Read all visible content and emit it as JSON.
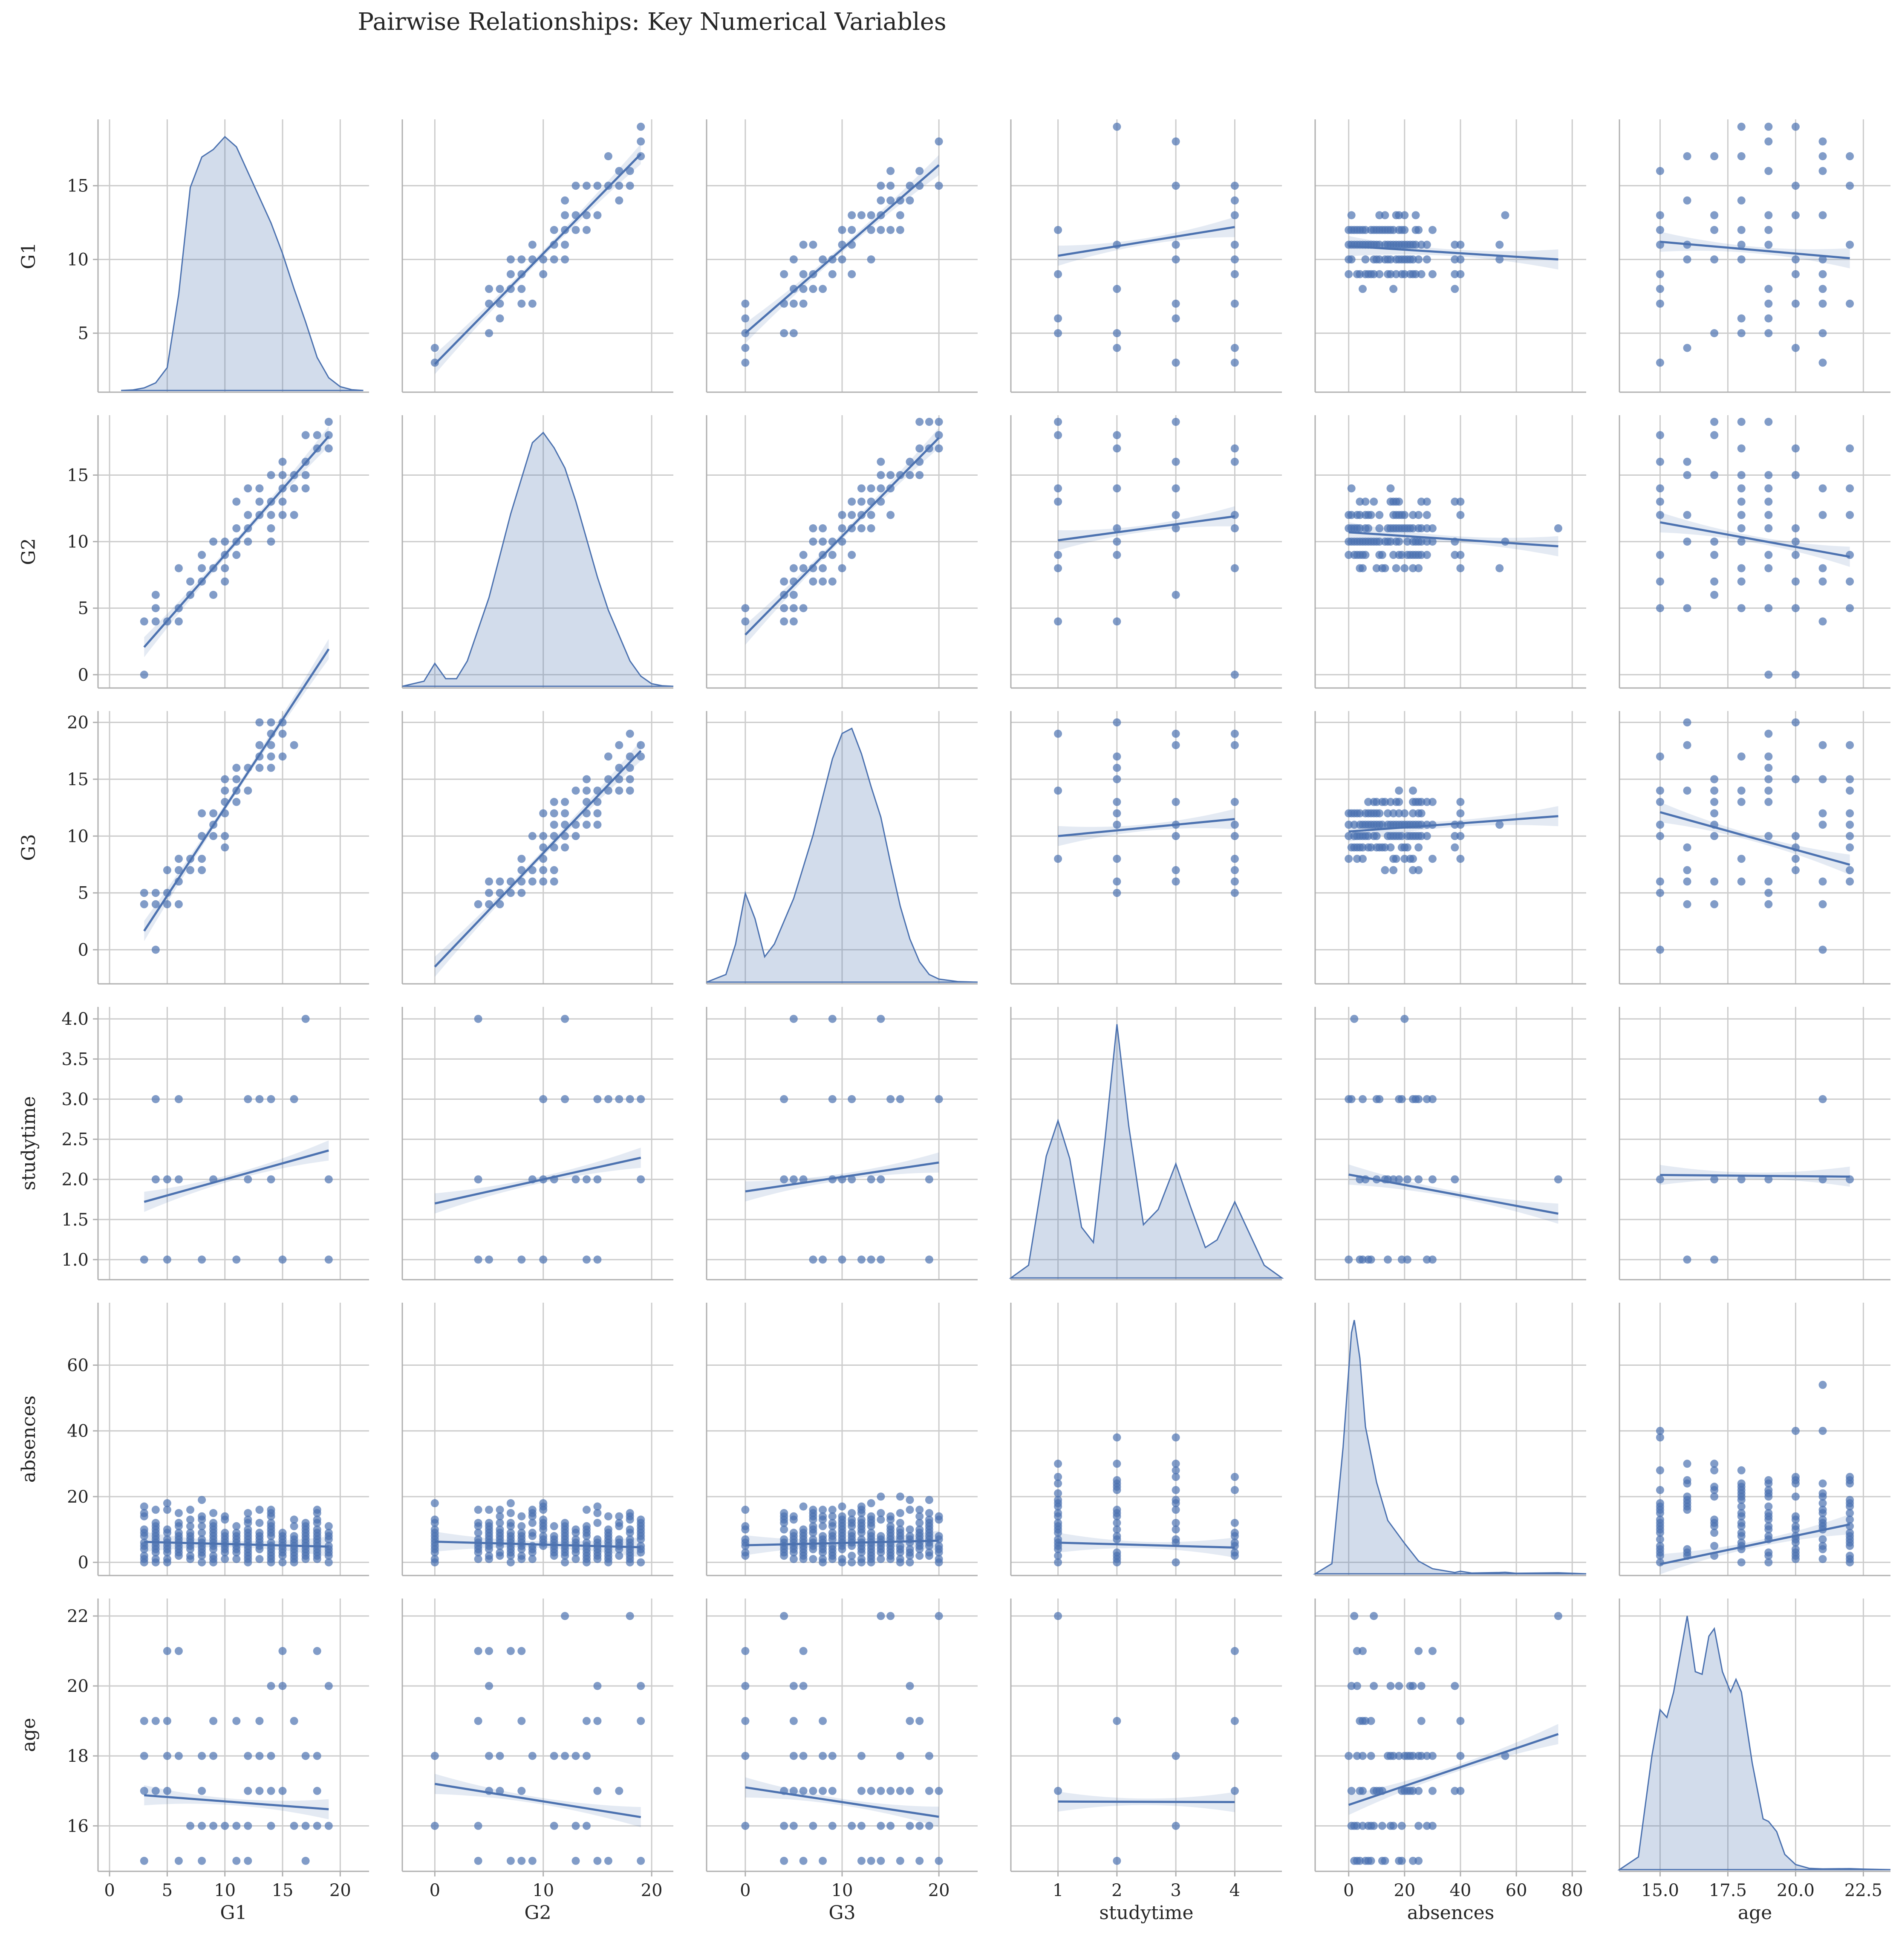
{
  "chart_data": {
    "type": "scatter",
    "kind": "pairplot",
    "title": "Pairwise Relationships: Key Numerical Variables",
    "variables": [
      {
        "name": "G1",
        "range": [
          1,
          19.5
        ],
        "ticks": [
          5,
          10,
          15
        ],
        "tick_labels": [
          "5",
          "10",
          "15"
        ],
        "x_range": [
          -1,
          22.5
        ],
        "x_ticks": [
          0,
          5,
          10,
          15,
          20
        ],
        "x_tick_labels": [
          "0",
          "5",
          "10",
          "15",
          "20"
        ]
      },
      {
        "name": "G2",
        "range": [
          -1,
          19.5
        ],
        "ticks": [
          0,
          5,
          10,
          15
        ],
        "tick_labels": [
          "0",
          "5",
          "10",
          "15"
        ],
        "x_range": [
          -3,
          22
        ],
        "x_ticks": [
          0,
          10,
          20
        ],
        "x_tick_labels": [
          "0",
          "10",
          "20"
        ]
      },
      {
        "name": "G3",
        "range": [
          -3,
          21
        ],
        "ticks": [
          0,
          5,
          10,
          15,
          20
        ],
        "tick_labels": [
          "0",
          "5",
          "10",
          "15",
          "20"
        ],
        "x_range": [
          -4,
          24
        ],
        "x_ticks": [
          0,
          10,
          20
        ],
        "x_tick_labels": [
          "0",
          "10",
          "20"
        ]
      },
      {
        "name": "studytime",
        "range": [
          0.75,
          4.15
        ],
        "ticks": [
          1.0,
          1.5,
          2.0,
          2.5,
          3.0,
          3.5,
          4.0
        ],
        "tick_labels": [
          "1.0",
          "1.5",
          "2.0",
          "2.5",
          "3.0",
          "3.5",
          "4.0"
        ],
        "x_range": [
          0.2,
          4.8
        ],
        "x_ticks": [
          1,
          2,
          3,
          4
        ],
        "x_tick_labels": [
          "1",
          "2",
          "3",
          "4"
        ]
      },
      {
        "name": "absences",
        "range": [
          -4,
          79
        ],
        "ticks": [
          0,
          20,
          40,
          60
        ],
        "tick_labels": [
          "0",
          "20",
          "40",
          "60"
        ],
        "x_range": [
          -12,
          85
        ],
        "x_ticks": [
          0,
          20,
          40,
          60,
          80
        ],
        "x_tick_labels": [
          "0",
          "20",
          "40",
          "60",
          "80"
        ]
      },
      {
        "name": "age",
        "range": [
          14.7,
          22.5
        ],
        "ticks": [
          16,
          18,
          20,
          22
        ],
        "tick_labels": [
          "16",
          "18",
          "20",
          "22"
        ],
        "x_range": [
          13.5,
          23.5
        ],
        "x_ticks": [
          15.0,
          17.5,
          20.0,
          22.5
        ],
        "x_tick_labels": [
          "15.0",
          "17.5",
          "20.0",
          "22.5"
        ]
      }
    ],
    "levels": {
      "G1": [
        3,
        4,
        5,
        6,
        7,
        8,
        9,
        10,
        11,
        12,
        13,
        14,
        15,
        16,
        17,
        18,
        19
      ],
      "G2": [
        0,
        4,
        5,
        6,
        7,
        8,
        9,
        10,
        11,
        12,
        13,
        14,
        15,
        16,
        17,
        18,
        19
      ],
      "G3": [
        0,
        4,
        5,
        6,
        7,
        8,
        9,
        10,
        11,
        12,
        13,
        14,
        15,
        16,
        17,
        18,
        19,
        20
      ],
      "studytime": [
        1,
        2,
        3,
        4
      ],
      "absences": [
        0,
        1,
        2,
        3,
        4,
        5,
        6,
        7,
        8,
        9,
        10,
        11,
        12,
        13,
        14,
        15,
        16,
        17,
        18,
        19,
        20,
        21,
        22,
        23,
        24,
        25,
        26,
        28,
        30,
        38,
        40,
        54,
        56,
        75
      ],
      "age": [
        15,
        16,
        17,
        18,
        19,
        20,
        21,
        22
      ]
    },
    "regression": {
      "G1": {
        "G2": [
          2.9,
          0.75
        ],
        "G3": [
          5.0,
          0.57
        ],
        "studytime": [
          9.6,
          0.65
        ],
        "absences": [
          10.9,
          -0.012
        ],
        "age": [
          13.6,
          -0.16
        ]
      },
      "G2": {
        "G1": [
          -0.9,
          0.99
        ],
        "G3": [
          3.0,
          0.74
        ],
        "studytime": [
          9.5,
          0.6
        ],
        "absences": [
          10.7,
          -0.014
        ],
        "age": [
          17.0,
          -0.37
        ]
      },
      "G3": {
        "G1": [
          -3.0,
          1.55
        ],
        "G2": [
          -1.5,
          1.0
        ],
        "studytime": [
          9.5,
          0.5
        ],
        "absences": [
          10.4,
          0.018
        ],
        "age": [
          22.0,
          -0.66
        ]
      },
      "studytime": {
        "G1": [
          1.6,
          0.04
        ],
        "G2": [
          1.7,
          0.03
        ],
        "G3": [
          1.85,
          0.018
        ],
        "absences": [
          2.06,
          -0.0065
        ],
        "age": [
          2.1,
          -0.003
        ]
      },
      "absences": {
        "G1": [
          6.5,
          -0.09
        ],
        "G2": [
          6.3,
          -0.09
        ],
        "G3": [
          5.2,
          0.07
        ],
        "studytime": [
          6.5,
          -0.5
        ],
        "age": [
          -26.5,
          1.73
        ]
      },
      "age": {
        "G1": [
          16.95,
          -0.025
        ],
        "G2": [
          17.2,
          -0.05
        ],
        "G3": [
          17.1,
          -0.042
        ],
        "studytime": [
          16.7,
          -0.005
        ],
        "absences": [
          16.6,
          0.027
        ]
      }
    },
    "kde": {
      "G1": [
        [
          1,
          0
        ],
        [
          2,
          0.002
        ],
        [
          3,
          0.01
        ],
        [
          4,
          0.03
        ],
        [
          5,
          0.09
        ],
        [
          6,
          0.38
        ],
        [
          7,
          0.8
        ],
        [
          8,
          0.92
        ],
        [
          9,
          0.95
        ],
        [
          10,
          1.0
        ],
        [
          11,
          0.96
        ],
        [
          12,
          0.86
        ],
        [
          13,
          0.76
        ],
        [
          14,
          0.66
        ],
        [
          15,
          0.54
        ],
        [
          16,
          0.4
        ],
        [
          17,
          0.27
        ],
        [
          18,
          0.13
        ],
        [
          19,
          0.05
        ],
        [
          20,
          0.015
        ],
        [
          21,
          0.003
        ],
        [
          22,
          0
        ]
      ],
      "G2": [
        [
          -3,
          0
        ],
        [
          -1,
          0.02
        ],
        [
          0,
          0.09
        ],
        [
          1,
          0.03
        ],
        [
          2,
          0.03
        ],
        [
          3,
          0.1
        ],
        [
          5,
          0.35
        ],
        [
          7,
          0.68
        ],
        [
          9,
          0.96
        ],
        [
          10,
          1.0
        ],
        [
          11,
          0.94
        ],
        [
          12,
          0.86
        ],
        [
          13,
          0.73
        ],
        [
          14,
          0.58
        ],
        [
          15,
          0.43
        ],
        [
          16,
          0.3
        ],
        [
          17,
          0.2
        ],
        [
          18,
          0.1
        ],
        [
          19,
          0.04
        ],
        [
          20,
          0.01
        ],
        [
          21,
          0.002
        ],
        [
          22,
          0
        ]
      ],
      "G3": [
        [
          -4,
          0
        ],
        [
          -2,
          0.03
        ],
        [
          -1,
          0.15
        ],
        [
          0,
          0.35
        ],
        [
          1,
          0.25
        ],
        [
          2,
          0.1
        ],
        [
          3,
          0.15
        ],
        [
          5,
          0.33
        ],
        [
          7,
          0.58
        ],
        [
          9,
          0.88
        ],
        [
          10,
          0.98
        ],
        [
          11,
          1.0
        ],
        [
          12,
          0.9
        ],
        [
          13,
          0.77
        ],
        [
          14,
          0.65
        ],
        [
          15,
          0.47
        ],
        [
          16,
          0.3
        ],
        [
          17,
          0.17
        ],
        [
          18,
          0.08
        ],
        [
          19,
          0.03
        ],
        [
          20,
          0.012
        ],
        [
          22,
          0.002
        ],
        [
          24,
          0
        ]
      ],
      "studytime": [
        [
          0.2,
          0
        ],
        [
          0.5,
          0.05
        ],
        [
          0.8,
          0.48
        ],
        [
          1.0,
          0.62
        ],
        [
          1.2,
          0.47
        ],
        [
          1.4,
          0.2
        ],
        [
          1.6,
          0.14
        ],
        [
          1.8,
          0.55
        ],
        [
          2.0,
          1.0
        ],
        [
          2.2,
          0.6
        ],
        [
          2.45,
          0.21
        ],
        [
          2.7,
          0.27
        ],
        [
          3.0,
          0.45
        ],
        [
          3.25,
          0.28
        ],
        [
          3.5,
          0.12
        ],
        [
          3.7,
          0.15
        ],
        [
          4.0,
          0.3
        ],
        [
          4.2,
          0.2
        ],
        [
          4.5,
          0.05
        ],
        [
          4.8,
          0
        ]
      ],
      "absences": [
        [
          -12,
          0
        ],
        [
          -6,
          0.04
        ],
        [
          -2,
          0.5
        ],
        [
          1,
          0.95
        ],
        [
          2,
          1.0
        ],
        [
          4,
          0.85
        ],
        [
          6,
          0.58
        ],
        [
          10,
          0.36
        ],
        [
          14,
          0.21
        ],
        [
          20,
          0.12
        ],
        [
          25,
          0.05
        ],
        [
          30,
          0.02
        ],
        [
          38,
          0.005
        ],
        [
          40,
          0.01
        ],
        [
          44,
          0.003
        ],
        [
          54,
          0.005
        ],
        [
          56,
          0.006
        ],
        [
          60,
          0.002
        ],
        [
          75,
          0.004
        ],
        [
          85,
          0
        ]
      ],
      "age": [
        [
          13.5,
          0
        ],
        [
          14.2,
          0.05
        ],
        [
          14.7,
          0.45
        ],
        [
          15.0,
          0.63
        ],
        [
          15.25,
          0.6
        ],
        [
          15.5,
          0.7
        ],
        [
          15.8,
          0.88
        ],
        [
          16.0,
          1.0
        ],
        [
          16.3,
          0.78
        ],
        [
          16.55,
          0.77
        ],
        [
          16.8,
          0.92
        ],
        [
          17.0,
          0.95
        ],
        [
          17.3,
          0.78
        ],
        [
          17.6,
          0.7
        ],
        [
          17.8,
          0.75
        ],
        [
          18.0,
          0.7
        ],
        [
          18.4,
          0.42
        ],
        [
          18.8,
          0.2
        ],
        [
          19.0,
          0.19
        ],
        [
          19.3,
          0.15
        ],
        [
          19.6,
          0.06
        ],
        [
          20.0,
          0.02
        ],
        [
          20.5,
          0.005
        ],
        [
          21.0,
          0.003
        ],
        [
          22.0,
          0.004
        ],
        [
          22.5,
          0.002
        ],
        [
          23.5,
          0
        ]
      ]
    }
  }
}
